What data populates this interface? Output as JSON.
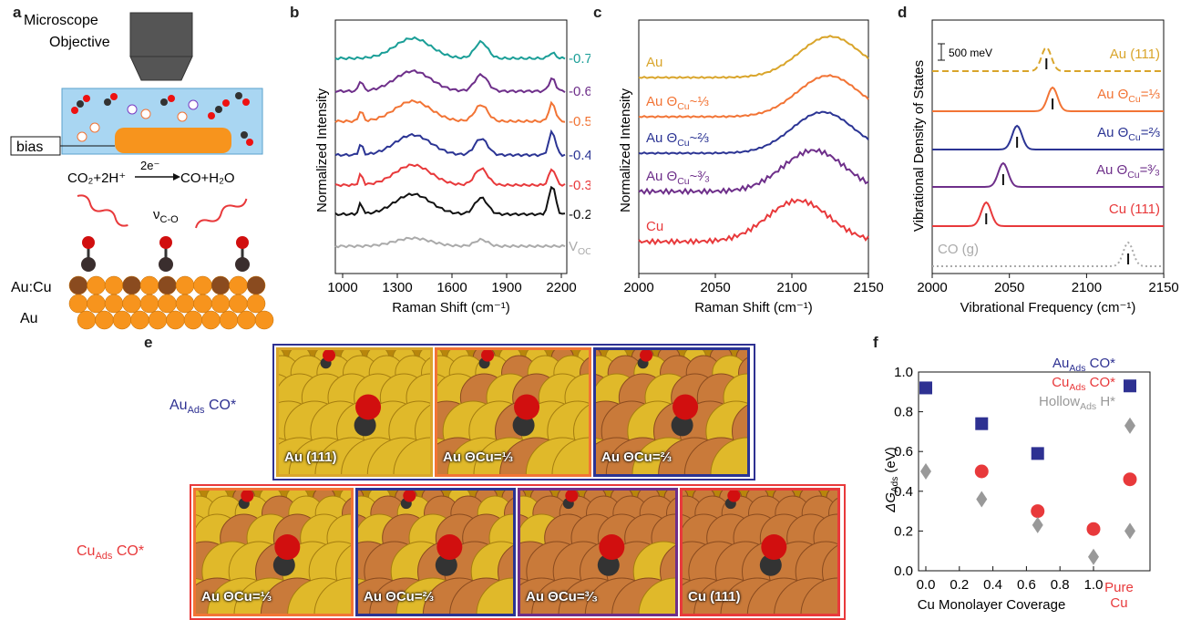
{
  "panel_letters": [
    "a",
    "b",
    "c",
    "d",
    "e",
    "f"
  ],
  "colors": {
    "teal": "#1a9e97",
    "purple": "#6e2f8a",
    "orange": "#f27435",
    "blue": "#2b3494",
    "red": "#e8393b",
    "black": "#111111",
    "gray": "#aaaaaa",
    "gold": "#d9a52b",
    "au_ads_blue": "#2e3192",
    "cu_ads_red": "#e8393b"
  },
  "panel_a": {
    "objective_label_1": "Microscope",
    "objective_label_2": "Objective",
    "bias_label": "bias",
    "reaction_left": "CO₂+2H⁺",
    "reaction_arrow": "2e⁻",
    "reaction_right": "CO+H₂O",
    "vibration_label": "ν",
    "vibration_sub": "C-O",
    "layer_top": "Au:Cu",
    "layer_bottom": "Au"
  },
  "panel_b": {
    "ylabel": "Normalized Intensity",
    "xlabel": "Raman Shift (cm⁻¹)",
    "xticks": [
      "1000",
      "1300",
      "1600",
      "1900",
      "2200"
    ],
    "series_labels": [
      {
        "label": "-0.7",
        "color": "#1a9e97"
      },
      {
        "label": "-0.6",
        "color": "#6e2f8a"
      },
      {
        "label": "-0.5",
        "color": "#f27435"
      },
      {
        "label": "-0.4",
        "color": "#2b3494"
      },
      {
        "label": "-0.3",
        "color": "#e8393b"
      },
      {
        "label": "-0.2",
        "color": "#111111"
      },
      {
        "label": "V",
        "sub": "OC",
        "color": "#aaaaaa"
      }
    ]
  },
  "panel_c": {
    "ylabel": "Normalized Intensity",
    "xlabel": "Raman Shift (cm⁻¹)",
    "xticks": [
      "2000",
      "2050",
      "2100",
      "2150"
    ],
    "series_labels": [
      {
        "label": "Au",
        "color": "#d9a52b"
      },
      {
        "label": "Au Θ",
        "sub": "Cu",
        "tail": "~⅓",
        "color": "#f27435"
      },
      {
        "label": "Au Θ",
        "sub": "Cu",
        "tail": "~⅔",
        "color": "#2b3494"
      },
      {
        "label": "Au Θ",
        "sub": "Cu",
        "tail": "~³⁄₃",
        "color": "#6e2f8a"
      },
      {
        "label": "Cu",
        "color": "#e8393b"
      }
    ]
  },
  "panel_d": {
    "ylabel": "Vibrational Density of States",
    "xlabel": "Vibrational Frequency (cm⁻¹)",
    "xticks": [
      "2000",
      "2050",
      "2100",
      "2150"
    ],
    "scale_label": "500 meV",
    "series_labels": [
      {
        "label": "Au (111)",
        "color": "#d9a52b"
      },
      {
        "label": "Au Θ",
        "sub": "Cu",
        "tail": "=⅓",
        "color": "#f27435"
      },
      {
        "label": "Au Θ",
        "sub": "Cu",
        "tail": "=⅔",
        "color": "#2b3494"
      },
      {
        "label": "Au Θ",
        "sub": "Cu",
        "tail": "=³⁄₃",
        "color": "#6e2f8a"
      },
      {
        "label": "Cu (111)",
        "color": "#e8393b"
      },
      {
        "label": "CO (g)",
        "color": "#aaaaaa"
      }
    ]
  },
  "panel_e": {
    "row1_label": "Au",
    "row1_sub": "Ads",
    "row1_tail": " CO*",
    "row2_label": "Cu",
    "row2_sub": "Ads",
    "row2_tail": " CO*",
    "row1_tiles": [
      "Au (111)",
      "Au ΘCu=⅓",
      "Au ΘCu=⅔"
    ],
    "row2_tiles": [
      "Au ΘCu=⅓",
      "Au ΘCu=⅔",
      "Au ΘCu=³⁄₃",
      "Cu (111)"
    ]
  },
  "panel_f": {
    "ylabel": "ΔG",
    "ylabel_sub": "Ads",
    "ylabel_tail": " (eV)",
    "xlabel": "Cu Monolayer Coverage",
    "xticks": [
      "0.0",
      "0.2",
      "0.4",
      "0.6",
      "0.8",
      "1.0"
    ],
    "pure_label_1": "Pure",
    "pure_label_2": "Cu",
    "yticks": [
      "0.0",
      "0.2",
      "0.4",
      "0.6",
      "0.8",
      "1.0"
    ],
    "legend": [
      {
        "label": "Au",
        "sub": "Ads",
        "tail": " CO*",
        "color": "#2e3192",
        "marker": "square"
      },
      {
        "label": "Cu",
        "sub": "Ads",
        "tail": " CO*",
        "color": "#e8393b",
        "marker": "circle"
      },
      {
        "label": "Hollow",
        "sub": "Ads",
        "tail": " H*",
        "color": "#999999",
        "marker": "diamond"
      }
    ]
  },
  "chart_data": [
    {
      "type": "scatter",
      "panel": "f",
      "xlabel": "Cu Monolayer Coverage",
      "ylabel": "ΔG Ads (eV)",
      "xlim": [
        0,
        1.0
      ],
      "ylim": [
        0,
        1.0
      ],
      "series": [
        {
          "name": "AuAds CO*",
          "points": [
            [
              0.0,
              0.92
            ],
            [
              0.333,
              0.74
            ],
            [
              0.667,
              0.59
            ],
            [
              "Pure Cu",
              0.93
            ]
          ]
        },
        {
          "name": "CuAds CO*",
          "points": [
            [
              0.333,
              0.5
            ],
            [
              0.667,
              0.3
            ],
            [
              1.0,
              0.21
            ],
            [
              "Pure Cu",
              0.46
            ]
          ]
        },
        {
          "name": "HollowAds H*",
          "points": [
            [
              0.0,
              0.5
            ],
            [
              0.333,
              0.36
            ],
            [
              0.667,
              0.23
            ],
            [
              1.0,
              0.07
            ],
            [
              "Pure Cu",
              0.73
            ],
            [
              "Pure Cu",
              0.2
            ]
          ]
        }
      ]
    }
  ]
}
